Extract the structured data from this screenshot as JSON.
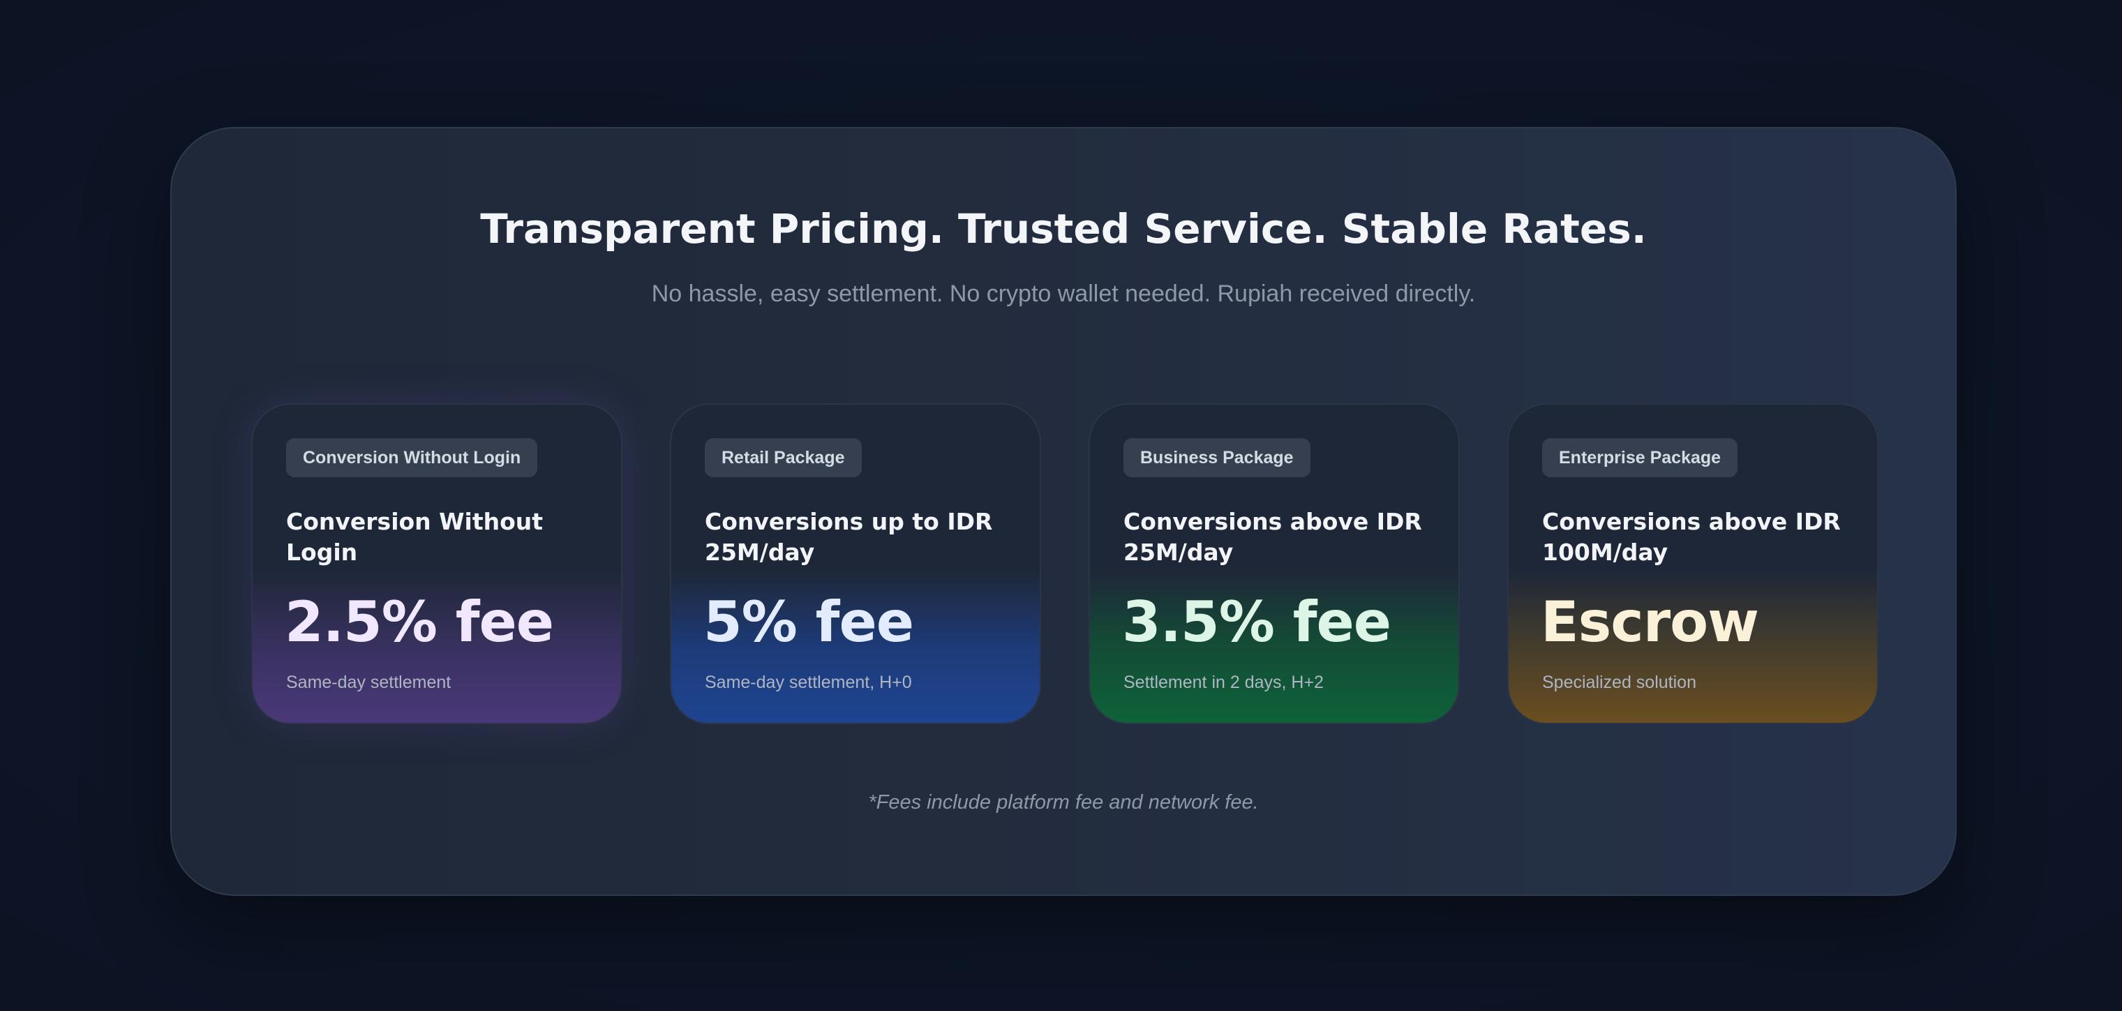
{
  "header": {
    "title": "Transparent Pricing. Trusted Service. Stable Rates.",
    "subtitle": "No hassle, easy settlement. No crypto wallet needed. Rupiah received directly."
  },
  "cards": [
    {
      "badge": "Conversion Without Login",
      "headline": "Conversion Without Login",
      "price": "2.5% fee",
      "note": "Same-day settlement",
      "accent_color": "#4a3878"
    },
    {
      "badge": "Retail Package",
      "headline": "Conversions up to IDR 25M/day",
      "price": "5% fee",
      "note": "Same-day settlement, H+0",
      "accent_color": "#1e4490"
    },
    {
      "badge": "Business Package",
      "headline": "Conversions above IDR 25M/day",
      "price": "3.5% fee",
      "note": "Settlement in 2 days, H+2",
      "accent_color": "#0e6238"
    },
    {
      "badge": "Enterprise Package",
      "headline": "Conversions above IDR 100M/day",
      "price": "Escrow",
      "note": "Specialized solution",
      "accent_color": "#6a4e20"
    }
  ],
  "footnote": "*Fees include platform fee and network fee."
}
